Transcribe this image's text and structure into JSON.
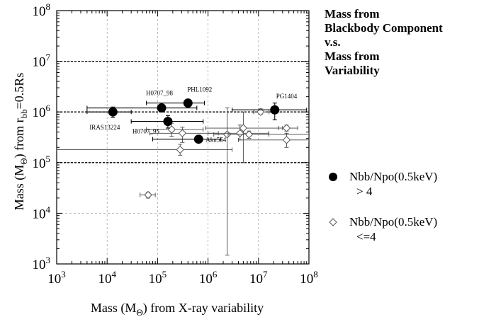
{
  "chart_data": {
    "type": "scatter",
    "x_scale": "log",
    "y_scale": "log",
    "xlim": [
      1000,
      100000000
    ],
    "ylim": [
      1000,
      100000000
    ],
    "grid": true,
    "xlabel_parts": [
      "Mass (M",
      "Θ",
      ") from X-ray variability"
    ],
    "ylabel_parts": [
      "Mass (M",
      "Θ",
      ") from r",
      "bb",
      "=0.5Rs"
    ],
    "x_ticks": [
      {
        "base": "10",
        "exp": "3"
      },
      {
        "base": "10",
        "exp": "4"
      },
      {
        "base": "10",
        "exp": "5"
      },
      {
        "base": "10",
        "exp": "6"
      },
      {
        "base": "10",
        "exp": "7"
      },
      {
        "base": "10",
        "exp": "8"
      }
    ],
    "y_ticks": [
      {
        "base": "10",
        "exp": "3"
      },
      {
        "base": "10",
        "exp": "4"
      },
      {
        "base": "10",
        "exp": "5"
      },
      {
        "base": "10",
        "exp": "6"
      },
      {
        "base": "10",
        "exp": "7"
      },
      {
        "base": "10",
        "exp": "8"
      }
    ],
    "reference_lines_y": [
      100000,
      1000000,
      10000000
    ],
    "title_lines": [
      "Mass from",
      "Blackbody Component",
      "v.s.",
      "Mass from",
      "Variability"
    ],
    "legend": [
      {
        "marker": "filled-circle",
        "lines": [
          "Nbb/Npo(0.5keV)",
          "> 4"
        ]
      },
      {
        "marker": "open-diamond",
        "lines": [
          "Nbb/Npo(0.5keV)",
          "<=4"
        ]
      }
    ],
    "series": [
      {
        "marker": "filled-circle",
        "points": [
          {
            "x": 13000,
            "y": 1000000,
            "xerr": [
              4000,
              30000
            ],
            "yerr": [
              780000,
              1250000
            ],
            "label": "IRAS13224"
          },
          {
            "x": 120000,
            "y": 1200000,
            "xerr": [
              4000,
              600000
            ],
            "yerr": [
              1000000,
              1400000
            ],
            "label": "H0707_98"
          },
          {
            "x": 400000,
            "y": 1500000,
            "xerr": [
              60000,
              850000
            ],
            "yerr": null,
            "label": "PHL1092"
          },
          {
            "x": 160000,
            "y": 650000,
            "xerr": [
              30000,
              800000
            ],
            "yerr": [
              480000,
              850000
            ],
            "label": "H0707_95"
          },
          {
            "x": 650000,
            "y": 290000,
            "xerr": [
              80000,
              1800000
            ],
            "yerr": null,
            "label": "Akn564"
          },
          {
            "x": 21000000,
            "y": 1100000,
            "xerr": [
              3000000,
              90000000
            ],
            "yerr": [
              700000,
              1500000
            ],
            "label": "PG1404"
          }
        ]
      },
      {
        "marker": "open-diamond",
        "points": [
          {
            "x": 65000,
            "y": 23000,
            "xerr": [
              45000,
              90000
            ],
            "yerr": [
              20000,
              26000
            ]
          },
          {
            "x": 190000,
            "y": 450000,
            "xerr": [
              60000,
              800000
            ],
            "yerr": [
              330000,
              600000
            ]
          },
          {
            "x": 280000,
            "y": 180000,
            "xerr": [
              1000,
              3000000
            ],
            "yerr": [
              140000,
              230000
            ]
          },
          {
            "x": 310000,
            "y": 380000,
            "xerr": [
              70000,
              1600000
            ],
            "yerr": [
              250000,
              500000
            ]
          },
          {
            "x": 2400000,
            "y": 360000,
            "xerr": [
              1300000,
              100000000
            ],
            "yerr": [
              1500,
              1200000
            ]
          },
          {
            "x": 4300000,
            "y": 380000,
            "xerr": [
              1000000,
              16000000
            ],
            "yerr": [
              280000,
              550000
            ]
          },
          {
            "x": 5000000,
            "y": 480000,
            "xerr": [
              900000,
              30000000
            ],
            "yerr": [
              100000,
              1000000
            ]
          },
          {
            "x": 6500000,
            "y": 360000,
            "xerr": [
              2500000,
              16000000
            ],
            "yerr": [
              300000,
              420000
            ]
          },
          {
            "x": 11000000,
            "y": 1000000,
            "xerr": [
              8000000,
              16000000
            ],
            "yerr": [
              900000,
              1150000
            ]
          },
          {
            "x": 36000000,
            "y": 480000,
            "xerr": [
              25000000,
              60000000
            ],
            "yerr": [
              420000,
              550000
            ]
          },
          {
            "x": 36000000,
            "y": 280000,
            "xerr": [
              4000000,
              100000000
            ],
            "yerr": [
              200000,
              380000
            ]
          }
        ]
      }
    ]
  }
}
